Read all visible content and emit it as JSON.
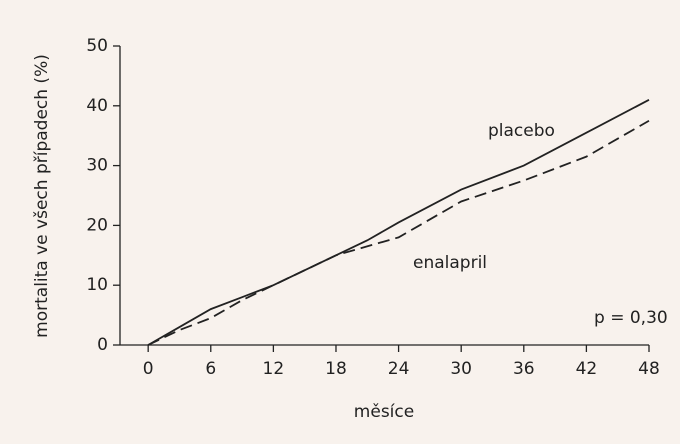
{
  "chart_data": {
    "type": "line",
    "x_label": "měsíce",
    "y_label": "mortalita ve všech případech (%)",
    "xlim": [
      -2.7,
      48
    ],
    "xticks": [
      0,
      6,
      12,
      18,
      24,
      30,
      36,
      42,
      48
    ],
    "ylim": [
      0,
      50
    ],
    "yticks": [
      0,
      10,
      20,
      30,
      40,
      50
    ],
    "background": "#f8f2ed",
    "series": [
      {
        "name": "placebo",
        "color": "#222222",
        "dash": "none",
        "x": [
          0,
          3,
          6,
          9,
          12,
          18,
          21,
          24,
          30,
          36,
          42,
          48
        ],
        "values": [
          0,
          3,
          6,
          8,
          10,
          15,
          17.5,
          20.5,
          26,
          30,
          35.5,
          41
        ]
      },
      {
        "name": "enalapril",
        "color": "#222222",
        "dash": "12,6",
        "x": [
          0,
          3,
          6,
          9,
          12,
          18,
          24,
          30,
          36,
          42,
          48
        ],
        "values": [
          0,
          2.5,
          4.5,
          7.5,
          10,
          15,
          18,
          24,
          27.5,
          31.5,
          37.5
        ]
      }
    ],
    "annotation": "p = 0,30"
  }
}
